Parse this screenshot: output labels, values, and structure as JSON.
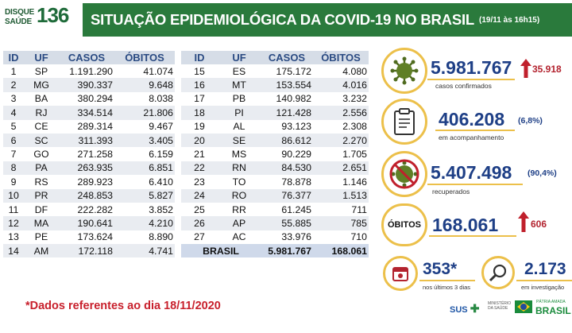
{
  "header": {
    "logo_line1": "DISQUE",
    "logo_line2": "SAÚDE",
    "logo_number": "136",
    "title": "SITUAÇÃO EPIDEMIOLÓGICA DA COVID-19 NO BRASIL",
    "date": "(19/11 às 16h15)"
  },
  "table": {
    "columns": [
      "ID",
      "UF",
      "CASOS",
      "ÓBITOS"
    ],
    "left_rows": [
      [
        "1",
        "SP",
        "1.191.290",
        "41.074"
      ],
      [
        "2",
        "MG",
        "390.337",
        "9.648"
      ],
      [
        "3",
        "BA",
        "380.294",
        "8.038"
      ],
      [
        "4",
        "RJ",
        "334.514",
        "21.806"
      ],
      [
        "5",
        "CE",
        "289.314",
        "9.467"
      ],
      [
        "6",
        "SC",
        "311.393",
        "3.405"
      ],
      [
        "7",
        "GO",
        "271.258",
        "6.159"
      ],
      [
        "8",
        "PA",
        "263.935",
        "6.851"
      ],
      [
        "9",
        "RS",
        "289.923",
        "6.410"
      ],
      [
        "10",
        "PR",
        "248.853",
        "5.827"
      ],
      [
        "11",
        "DF",
        "222.282",
        "3.852"
      ],
      [
        "12",
        "MA",
        "190.641",
        "4.210"
      ],
      [
        "13",
        "PE",
        "173.624",
        "8.890"
      ],
      [
        "14",
        "AM",
        "172.118",
        "4.741"
      ]
    ],
    "right_rows": [
      [
        "15",
        "ES",
        "175.172",
        "4.080"
      ],
      [
        "16",
        "MT",
        "153.554",
        "4.016"
      ],
      [
        "17",
        "PB",
        "140.982",
        "3.232"
      ],
      [
        "18",
        "PI",
        "121.428",
        "2.556"
      ],
      [
        "19",
        "AL",
        "93.123",
        "2.308"
      ],
      [
        "20",
        "SE",
        "86.612",
        "2.270"
      ],
      [
        "21",
        "MS",
        "90.229",
        "1.705"
      ],
      [
        "22",
        "RN",
        "84.530",
        "2.651"
      ],
      [
        "23",
        "TO",
        "78.878",
        "1.146"
      ],
      [
        "24",
        "RO",
        "76.377",
        "1.513"
      ],
      [
        "25",
        "RR",
        "61.245",
        "711"
      ],
      [
        "26",
        "AP",
        "55.885",
        "785"
      ],
      [
        "27",
        "AC",
        "33.976",
        "710"
      ]
    ],
    "total": {
      "label": "BRASIL",
      "casos": "5.981.767",
      "obitos": "168.061"
    }
  },
  "footnote": "*Dados referentes ao dia 18/11/2020",
  "stats": {
    "confirmed": {
      "value": "5.981.767",
      "increase": "35.918",
      "label": "casos confirmados",
      "icon": "virus-icon"
    },
    "monitoring": {
      "value": "406.208",
      "percent": "(6,8%)",
      "label": "em acompanhamento",
      "icon": "clipboard-icon"
    },
    "recovered": {
      "value": "5.407.498",
      "percent": "(90,4%)",
      "label": "recuperados",
      "icon": "virus-crossed-icon"
    },
    "deaths": {
      "badge": "ÓBITOS",
      "value": "168.061",
      "increase": "606"
    },
    "last3days": {
      "value": "353*",
      "label": "nos últimos 3 dias",
      "icon": "calendar-icon"
    },
    "investigation": {
      "value": "2.173",
      "label": "em investigação",
      "icon": "magnifier-icon"
    }
  },
  "footer": {
    "sus": "SUS",
    "ministry": "MINISTÉRIO DA SAÚDE",
    "gov_small": "PÁTRIA AMADA",
    "gov_big": "BRASIL"
  },
  "colors": {
    "header_green": "#2a7a3c",
    "navy": "#1e3f86",
    "red": "#b3232f",
    "gold": "#ecc04a",
    "table_header": "#d6dde7"
  }
}
